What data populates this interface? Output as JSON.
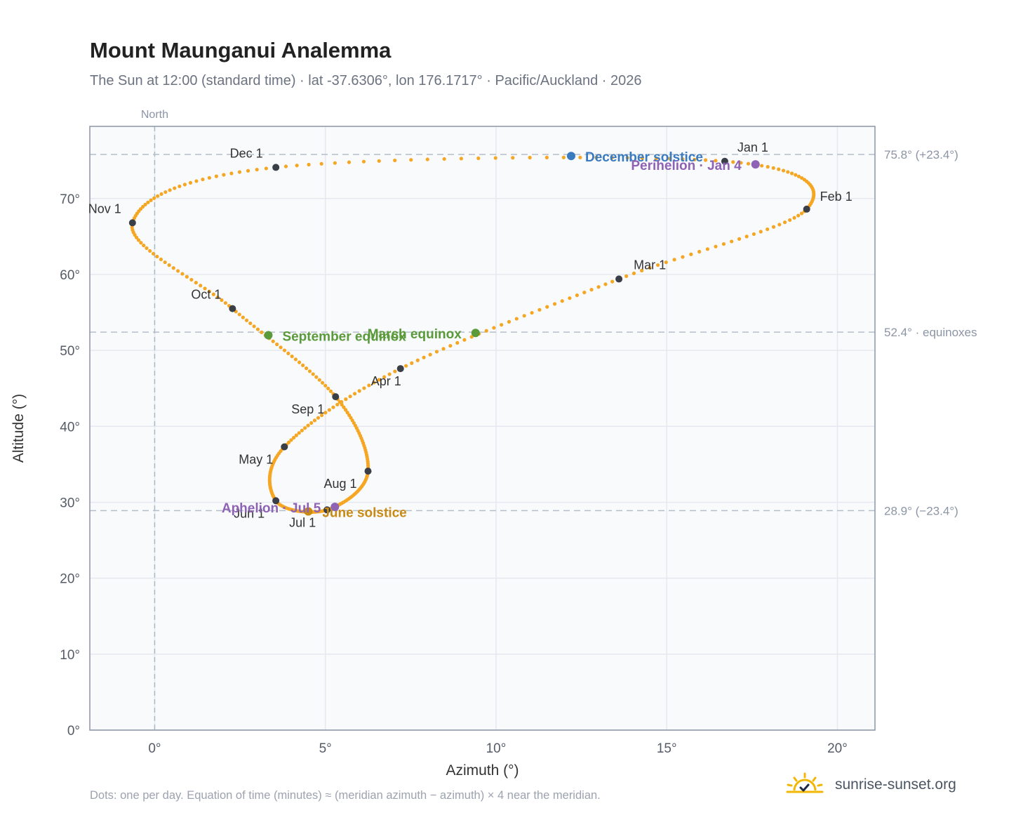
{
  "header": {
    "title": "Mount Maunganui Analemma",
    "subtitle": "The Sun at 12:00 (standard time) · lat -37.6306°, lon 176.1717° · Pacific/Auckland · 2026"
  },
  "footer": {
    "note": "Dots: one per day. Equation of time (minutes) ≈ (meridian azimuth − azimuth) × 4 near the meridian.",
    "brand": "sunrise-sunset.org"
  },
  "colors": {
    "curve": "#f5a623",
    "month_marker": "#3a3f47",
    "solstice_dec": "#3a7abf",
    "solstice_jun": "#c98a14",
    "equinox": "#5a9a3a",
    "apsis": "#8e63b5",
    "plot_bg": "#f8fafc",
    "grid": "#e5e9ef",
    "axis": "#8b95a5",
    "ref_line": "#b5bec9"
  },
  "chart_data": {
    "type": "scatter",
    "xlabel": "Azimuth (°)",
    "ylabel": "Altitude (°)",
    "xlim": [
      -1.9,
      21.1
    ],
    "ylim": [
      0,
      79.5
    ],
    "xticks": [
      0,
      5,
      10,
      15,
      20
    ],
    "yticks": [
      0,
      10,
      20,
      30,
      40,
      50,
      60,
      70
    ],
    "x_tick_labels": [
      "0°",
      "5°",
      "10°",
      "15°",
      "20°"
    ],
    "y_tick_labels": [
      "0°",
      "10°",
      "20°",
      "30°",
      "40°",
      "50°",
      "60°",
      "70°"
    ],
    "grid": true,
    "north_line": {
      "x": 0,
      "label": "North"
    },
    "reference_lines": [
      {
        "y": 75.8,
        "label": "75.8° (+23.4°)"
      },
      {
        "y": 52.4,
        "label": "52.4° · equinoxes"
      },
      {
        "y": 28.9,
        "label": "28.9° (−23.4°)"
      }
    ],
    "series": [
      {
        "note": "one dot per day",
        "points": [
          [
            16.7,
            74.9
          ],
          [
            19.1,
            68.6
          ],
          [
            13.6,
            59.4
          ],
          [
            7.2,
            47.6
          ],
          [
            3.8,
            37.3
          ],
          [
            3.55,
            30.2
          ],
          [
            5.05,
            29.0
          ],
          [
            6.25,
            34.1
          ],
          [
            5.3,
            43.9
          ],
          [
            2.28,
            55.5
          ],
          [
            -0.65,
            66.8
          ],
          [
            3.55,
            74.1
          ],
          [
            16.7,
            74.9
          ]
        ]
      }
    ],
    "month_markers": [
      {
        "label": "Jan 1",
        "x": 16.7,
        "y": 74.9
      },
      {
        "label": "Feb 1",
        "x": 19.1,
        "y": 68.6
      },
      {
        "label": "Mar 1",
        "x": 13.6,
        "y": 59.4
      },
      {
        "label": "Apr 1",
        "x": 7.2,
        "y": 47.6
      },
      {
        "label": "May 1",
        "x": 3.8,
        "y": 37.3
      },
      {
        "label": "Jun 1",
        "x": 3.55,
        "y": 30.2
      },
      {
        "label": "Jul 1",
        "x": 5.05,
        "y": 29.0
      },
      {
        "label": "Aug 1",
        "x": 6.25,
        "y": 34.1
      },
      {
        "label": "Sep 1",
        "x": 5.3,
        "y": 43.9
      },
      {
        "label": "Oct 1",
        "x": 2.28,
        "y": 55.5
      },
      {
        "label": "Nov 1",
        "x": -0.65,
        "y": 66.8
      },
      {
        "label": "Dec 1",
        "x": 3.55,
        "y": 74.1
      }
    ],
    "events": [
      {
        "label": "December solstice",
        "x": 12.2,
        "y": 75.6,
        "kind": "solstice_dec"
      },
      {
        "label": "Perihelion · Jan 4",
        "x": 17.6,
        "y": 74.5,
        "kind": "apsis"
      },
      {
        "label": "March equinox",
        "x": 9.4,
        "y": 52.3,
        "kind": "equinox"
      },
      {
        "label": "September equinox",
        "x": 3.33,
        "y": 52.0,
        "kind": "equinox"
      },
      {
        "label": "June solstice",
        "x": 4.5,
        "y": 28.8,
        "kind": "solstice_jun"
      },
      {
        "label": "Aphelion · Jul 5",
        "x": 5.28,
        "y": 29.4,
        "kind": "apsis"
      }
    ]
  }
}
